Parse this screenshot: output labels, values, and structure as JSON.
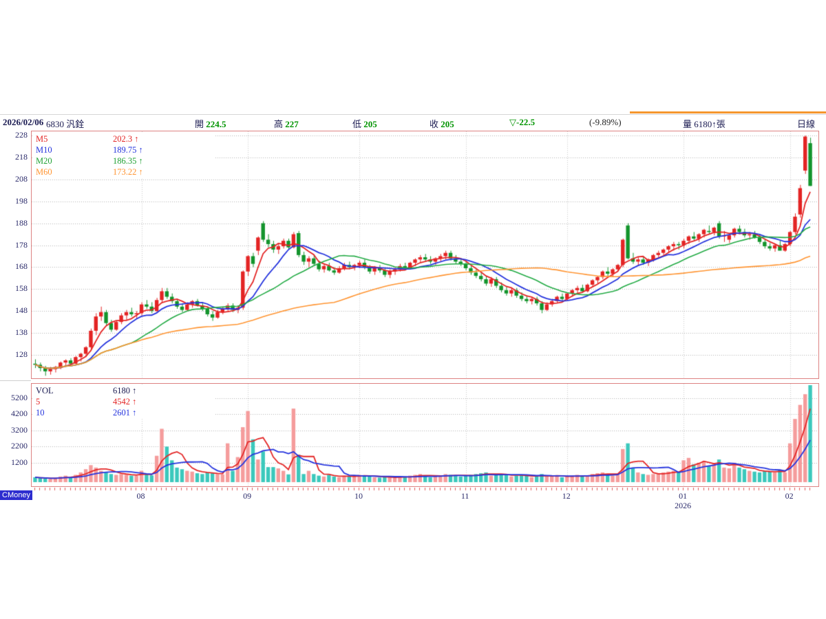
{
  "header": {
    "date": "2026/02/06",
    "stock": "6830 汎銓",
    "fields": [
      {
        "label": "開",
        "value": "224.5"
      },
      {
        "label": "高",
        "value": "227"
      },
      {
        "label": "低",
        "value": "205"
      },
      {
        "label": "收",
        "value": "205"
      }
    ],
    "change": "▽-22.5",
    "change_pct": "(-9.89%)",
    "volume_text": "量 6180↑張",
    "period": "日線"
  },
  "price_panel": {
    "y_ticks": [
      228,
      218,
      208,
      198,
      188,
      178,
      168,
      158,
      148,
      138,
      128
    ],
    "legend": [
      {
        "label": "M5",
        "value": "202.3",
        "arrow": "↑",
        "color": "#e32424"
      },
      {
        "label": "M10",
        "value": "189.75",
        "arrow": "↑",
        "color": "#2433dd"
      },
      {
        "label": "M20",
        "value": "186.35",
        "arrow": "↑",
        "color": "#1fa133"
      },
      {
        "label": "M60",
        "value": "173.22",
        "arrow": "↑",
        "color": "#ff9431"
      }
    ]
  },
  "volume_panel": {
    "y_ticks": [
      5200,
      4200,
      3200,
      2200,
      1200
    ],
    "legend": [
      {
        "label": "VOL",
        "value": "6180",
        "arrow": "↑",
        "color": "#1b1b52"
      },
      {
        "label": "5",
        "value": "4542",
        "arrow": "↑",
        "color": "#e32424"
      },
      {
        "label": "10",
        "value": "2601",
        "arrow": "↑",
        "color": "#2433dd"
      }
    ]
  },
  "x_axis": {
    "months": [
      {
        "label": "08",
        "index": 21
      },
      {
        "label": "09",
        "index": 42
      },
      {
        "label": "10",
        "index": 64
      },
      {
        "label": "11",
        "index": 85
      },
      {
        "label": "12",
        "index": 105
      },
      {
        "label": "01",
        "index": 128
      },
      {
        "label": "02",
        "index": 149
      }
    ],
    "year": {
      "label": "2026",
      "month_index": 5
    }
  },
  "watermark": "CMoney",
  "chart_data": {
    "type": "candlestick",
    "title": "6830 汎銓 日線",
    "price_axis": {
      "min": 128,
      "max": 228,
      "step": 10
    },
    "volume_axis": {
      "min": 1200,
      "max": 5200,
      "step": 1000
    },
    "ma_periods": {
      "price": [
        5,
        10,
        20,
        60
      ],
      "volume": [
        5,
        10
      ]
    },
    "colors": {
      "up": "#e32424",
      "down": "#13942c",
      "vol_up": "#f59c9c",
      "vol_down": "#3cc8bc",
      "ma5": "#e32424",
      "ma10": "#2433dd",
      "ma20": "#22aa44",
      "ma60": "#ff9431",
      "grid": "#b0b0b0",
      "month_grid": "#c8c8c8",
      "border": "#dd8282",
      "tick": "#e05c5c"
    },
    "candles": [
      [
        124,
        126,
        122,
        123.5,
        300
      ],
      [
        123.5,
        124.5,
        120.5,
        122,
        250
      ],
      [
        122,
        123,
        118.5,
        120.5,
        220
      ],
      [
        120.5,
        122.5,
        119,
        121.5,
        200
      ],
      [
        121.5,
        123,
        120,
        122.5,
        240
      ],
      [
        122.5,
        125,
        121.5,
        124.5,
        350
      ],
      [
        124.5,
        126,
        123,
        125.5,
        400
      ],
      [
        125.5,
        126.5,
        123.5,
        124,
        300
      ],
      [
        124,
        127.5,
        123.5,
        127,
        450
      ],
      [
        127,
        129,
        125,
        128.5,
        600
      ],
      [
        128.5,
        132,
        127,
        131.5,
        800
      ],
      [
        131.5,
        140,
        130.5,
        139,
        1050
      ],
      [
        139,
        147,
        137,
        145.5,
        900
      ],
      [
        145.5,
        150,
        143.5,
        147.5,
        700
      ],
      [
        147.5,
        148.5,
        141.5,
        142.5,
        600
      ],
      [
        142.5,
        144,
        138.5,
        139.5,
        500
      ],
      [
        139.5,
        143.5,
        139,
        143,
        450
      ],
      [
        143,
        147,
        142,
        146,
        500
      ],
      [
        146,
        148.5,
        144,
        147.5,
        450
      ],
      [
        147.5,
        149.5,
        145.5,
        146.5,
        400
      ],
      [
        146.5,
        148,
        144.5,
        147,
        380
      ],
      [
        147,
        152,
        146,
        151,
        700
      ],
      [
        151,
        153,
        149,
        150,
        500
      ],
      [
        150,
        152,
        147,
        148,
        420
      ],
      [
        148,
        154,
        147.5,
        153,
        1630
      ],
      [
        153,
        158.5,
        152,
        157,
        3300
      ],
      [
        157,
        158.5,
        153.5,
        154.5,
        2200
      ],
      [
        154.5,
        156,
        151.5,
        152.5,
        1350
      ],
      [
        152.5,
        153.5,
        149,
        150,
        900
      ],
      [
        150,
        151.5,
        147.5,
        148.5,
        800
      ],
      [
        148.5,
        152,
        148,
        151,
        700
      ],
      [
        151,
        153,
        149.5,
        152.5,
        650
      ],
      [
        152.5,
        153.5,
        150,
        150.5,
        550
      ],
      [
        150.5,
        152,
        148,
        149,
        500
      ],
      [
        149,
        150,
        145.5,
        146.5,
        600
      ],
      [
        146.5,
        148,
        143.5,
        145,
        550
      ],
      [
        145,
        148.5,
        144.5,
        147.5,
        500
      ],
      [
        147.5,
        150,
        146.5,
        149,
        480
      ],
      [
        149,
        151.5,
        147.5,
        150.5,
        2400
      ],
      [
        150.5,
        151.5,
        147.5,
        148.5,
        700
      ],
      [
        148.5,
        150.5,
        147,
        149.5,
        1550
      ],
      [
        149.5,
        166.5,
        148.5,
        166,
        3400
      ],
      [
        166,
        173.5,
        164,
        173,
        4400
      ],
      [
        173,
        174.5,
        168,
        169.5,
        2650
      ],
      [
        175.5,
        182,
        173.5,
        181.5,
        1400
      ],
      [
        188,
        189,
        179.5,
        180.5,
        1900
      ],
      [
        180.5,
        183,
        177,
        178.5,
        930
      ],
      [
        178.5,
        180,
        174.5,
        176,
        930
      ],
      [
        176,
        178.5,
        174,
        177.5,
        850
      ],
      [
        177.5,
        181,
        176.5,
        180,
        700
      ],
      [
        180,
        181,
        176,
        177,
        480
      ],
      [
        177,
        184,
        176.5,
        183,
        4550
      ],
      [
        183.5,
        184.5,
        172.5,
        173.5,
        1700
      ],
      [
        173.5,
        175,
        169,
        170.5,
        500
      ],
      [
        170.5,
        173,
        168,
        172,
        700
      ],
      [
        172,
        173.5,
        168.5,
        169.5,
        500
      ],
      [
        169.5,
        171,
        166,
        167,
        400
      ],
      [
        167,
        169.5,
        165.5,
        168.5,
        350
      ],
      [
        168.5,
        170,
        166,
        166.5,
        450
      ],
      [
        166.5,
        168,
        164.5,
        165.5,
        350
      ],
      [
        165.5,
        168.5,
        165,
        167.5,
        300
      ],
      [
        167.5,
        170,
        166.5,
        169,
        400
      ],
      [
        169,
        170.5,
        167,
        168,
        350
      ],
      [
        168,
        169.5,
        166.5,
        169,
        400
      ],
      [
        169,
        171,
        167.5,
        170,
        450
      ],
      [
        170,
        171.5,
        167,
        168,
        380
      ],
      [
        168,
        169,
        165,
        166,
        350
      ],
      [
        166,
        168.5,
        164.5,
        167.5,
        300
      ],
      [
        167.5,
        169,
        165.5,
        166.5,
        280
      ],
      [
        166.5,
        167.5,
        163.5,
        164.5,
        320
      ],
      [
        164.5,
        167,
        163,
        166,
        300
      ],
      [
        166,
        168,
        164.5,
        167,
        280
      ],
      [
        167,
        169.5,
        166,
        168.5,
        350
      ],
      [
        168.5,
        170,
        166.5,
        167.5,
        300
      ],
      [
        167.5,
        170.5,
        167,
        170,
        400
      ],
      [
        170,
        172,
        168.5,
        171.5,
        450
      ],
      [
        171.5,
        173.5,
        170,
        172.5,
        500
      ],
      [
        172.5,
        174,
        170.5,
        171.5,
        380
      ],
      [
        171.5,
        173,
        169.5,
        170.5,
        300
      ],
      [
        170.5,
        172.5,
        169,
        172,
        350
      ],
      [
        172,
        174,
        170.5,
        173,
        400
      ],
      [
        173,
        175.5,
        171.5,
        174.5,
        500
      ],
      [
        174.5,
        175.5,
        171,
        172,
        450
      ],
      [
        172,
        173.5,
        169.5,
        170.5,
        400
      ],
      [
        170.5,
        172,
        168.5,
        169.5,
        350
      ],
      [
        169.5,
        170.5,
        166.5,
        167.5,
        400
      ],
      [
        167.5,
        168.5,
        164.5,
        165.5,
        450
      ],
      [
        165.5,
        167,
        163,
        164,
        500
      ],
      [
        164,
        165.5,
        161.5,
        162.5,
        550
      ],
      [
        162.5,
        164,
        159.5,
        160.5,
        600
      ],
      [
        160.5,
        163.5,
        159,
        162.5,
        400
      ],
      [
        162.5,
        163.5,
        158.5,
        159.5,
        450
      ],
      [
        159.5,
        161,
        156.5,
        157.5,
        500
      ],
      [
        157.5,
        159,
        155,
        156,
        450
      ],
      [
        156,
        158.5,
        154.5,
        157.5,
        350
      ],
      [
        157.5,
        158.5,
        154,
        155,
        400
      ],
      [
        155,
        156.5,
        152.5,
        153.5,
        450
      ],
      [
        153.5,
        155,
        151.5,
        152.5,
        400
      ],
      [
        152.5,
        154.5,
        151,
        153.5,
        300
      ],
      [
        153.5,
        154.5,
        150.5,
        151.5,
        350
      ],
      [
        151.5,
        152.5,
        147,
        148.5,
        500
      ],
      [
        148.5,
        152,
        148,
        151,
        400
      ],
      [
        151,
        153.5,
        150,
        152.5,
        350
      ],
      [
        152.5,
        155,
        151.5,
        154.5,
        400
      ],
      [
        154.5,
        156,
        152.5,
        153.5,
        300
      ],
      [
        153.5,
        156.5,
        153,
        156,
        350
      ],
      [
        156,
        158,
        154.5,
        157.5,
        400
      ],
      [
        157.5,
        159.5,
        156,
        158.5,
        450
      ],
      [
        158.5,
        160,
        156.5,
        157,
        350
      ],
      [
        157,
        160.5,
        156.5,
        160,
        400
      ],
      [
        160,
        162.5,
        159,
        162,
        500
      ],
      [
        162,
        164,
        160.5,
        163.5,
        550
      ],
      [
        163.5,
        166.5,
        162.5,
        166,
        600
      ],
      [
        166,
        168,
        164,
        165,
        450
      ],
      [
        165,
        167.5,
        163.5,
        167,
        400
      ],
      [
        167,
        169.5,
        166,
        169,
        500
      ],
      [
        169,
        181,
        168,
        180.5,
        2050
      ],
      [
        187,
        188,
        171.5,
        172,
        2400
      ],
      [
        172,
        174.5,
        169.5,
        170.5,
        900
      ],
      [
        170.5,
        172.5,
        168.5,
        171.5,
        600
      ],
      [
        171.5,
        173,
        169,
        170,
        500
      ],
      [
        170,
        172,
        168.5,
        171.5,
        450
      ],
      [
        171.5,
        174,
        170.5,
        173.5,
        500
      ],
      [
        173.5,
        175.5,
        172,
        174.5,
        550
      ],
      [
        174.5,
        176.5,
        173,
        176,
        600
      ],
      [
        176,
        178,
        174.5,
        177.5,
        650
      ],
      [
        177.5,
        179.5,
        175.5,
        178.5,
        700
      ],
      [
        178.5,
        179.5,
        176,
        178,
        600
      ],
      [
        178,
        181,
        176.5,
        180,
        1350
      ],
      [
        180,
        182.5,
        178.5,
        182,
        1500
      ],
      [
        182,
        184,
        180,
        181,
        1100
      ],
      [
        181,
        183.5,
        179.5,
        183,
        1200
      ],
      [
        183,
        185.5,
        181.5,
        185,
        1300
      ],
      [
        184.5,
        187,
        183,
        184,
        1000
      ],
      [
        184,
        186.5,
        182.5,
        186,
        1100
      ],
      [
        188,
        189,
        181,
        182,
        1400
      ],
      [
        182,
        184.5,
        179.5,
        182.5,
        900
      ],
      [
        180.5,
        183,
        179,
        182.5,
        850
      ],
      [
        182.5,
        186,
        181.5,
        185.5,
        1200
      ],
      [
        185.5,
        187,
        183,
        184,
        900
      ],
      [
        184,
        185.5,
        181.5,
        182.5,
        800
      ],
      [
        182.5,
        184,
        180.5,
        183,
        700
      ],
      [
        183,
        184.5,
        181,
        181.5,
        650
      ],
      [
        181.5,
        183,
        178.5,
        179.5,
        600
      ],
      [
        179.5,
        181,
        176.5,
        177.5,
        700
      ],
      [
        177.5,
        179,
        175.5,
        176.5,
        650
      ],
      [
        176.5,
        178.5,
        175,
        178,
        600
      ],
      [
        178,
        180,
        176.5,
        175.5,
        750
      ],
      [
        175.5,
        179,
        175,
        178.5,
        600
      ],
      [
        178.5,
        184.5,
        177.5,
        184,
        2400
      ],
      [
        184,
        192.5,
        183,
        191,
        3910
      ],
      [
        192,
        205.5,
        190.5,
        204,
        4780
      ],
      [
        212,
        228,
        210.5,
        227.5,
        5440
      ],
      [
        224.5,
        227,
        205,
        205,
        6180
      ]
    ]
  }
}
